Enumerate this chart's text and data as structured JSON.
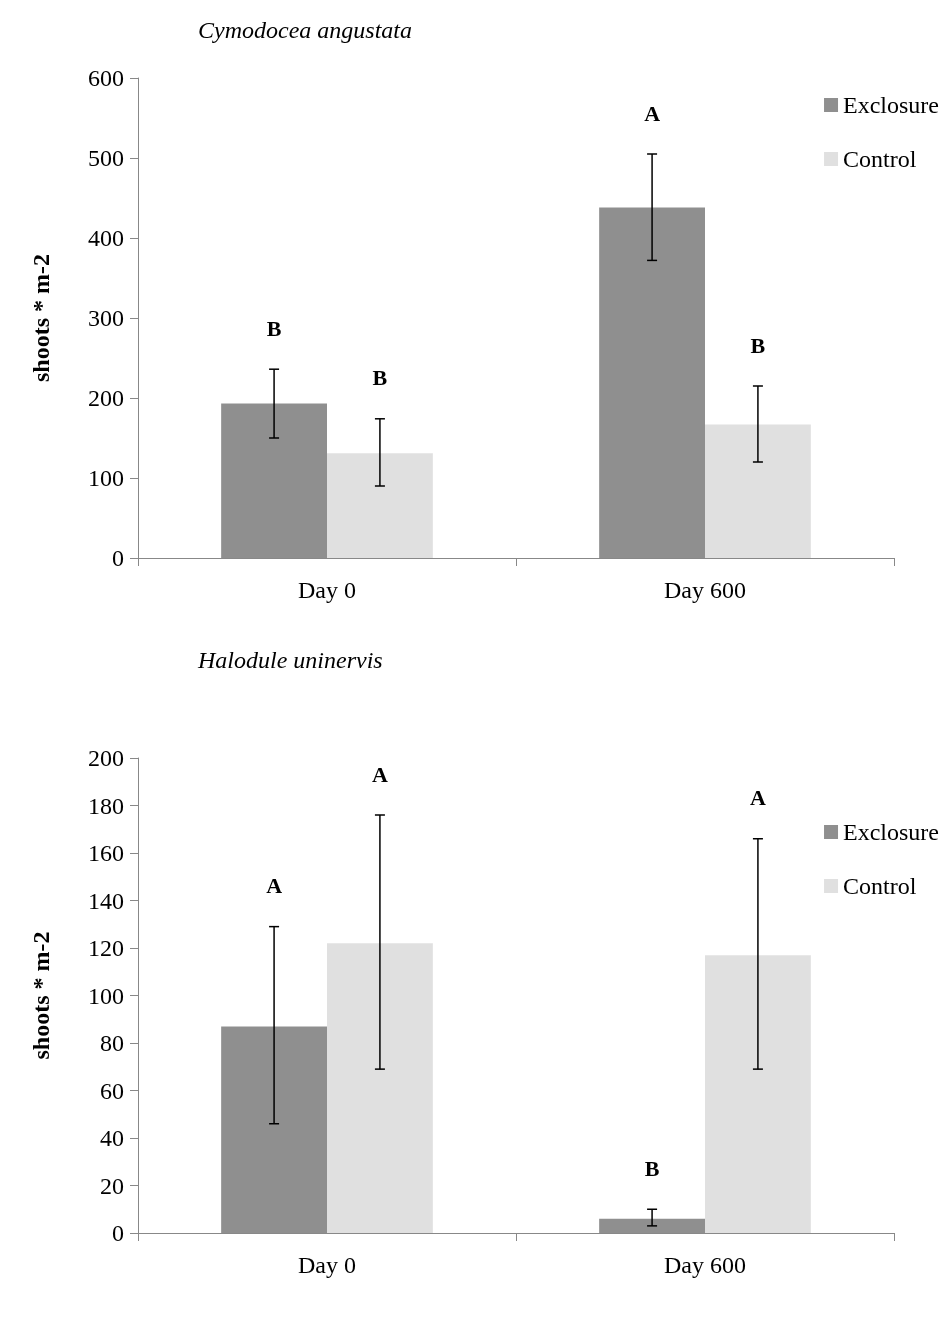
{
  "chart_data": [
    {
      "type": "bar",
      "title": "Cymodocea angustata",
      "ylabel": "shoots * m-2",
      "categories": [
        "Day 0",
        "Day 600"
      ],
      "ylim": [
        0,
        600
      ],
      "yticks": [
        0,
        100,
        200,
        300,
        400,
        500,
        600
      ],
      "grid": false,
      "legend": "top right",
      "annotations": [
        "B",
        "B",
        "A",
        "B"
      ],
      "series": [
        {
          "name": "Exclosure",
          "color": "#8f8f8f",
          "values": [
            193,
            438
          ],
          "errors": [
            [
              150,
              236
            ],
            [
              372,
              505
            ]
          ]
        },
        {
          "name": "Control",
          "color": "#e0e0e0",
          "values": [
            131,
            167
          ],
          "errors": [
            [
              90,
              174
            ],
            [
              120,
              215
            ]
          ]
        }
      ]
    },
    {
      "type": "bar",
      "title": "Halodule uninervis",
      "ylabel": "shoots * m-2",
      "categories": [
        "Day 0",
        "Day 600"
      ],
      "ylim": [
        0,
        200
      ],
      "yticks": [
        0,
        20,
        40,
        60,
        80,
        100,
        120,
        140,
        160,
        180,
        200
      ],
      "grid": false,
      "legend": "right",
      "annotations": [
        "A",
        "A",
        "B",
        "A"
      ],
      "series": [
        {
          "name": "Exclosure",
          "color": "#8f8f8f",
          "values": [
            87,
            6
          ],
          "errors": [
            [
              46,
              129
            ],
            [
              3,
              10
            ]
          ]
        },
        {
          "name": "Control",
          "color": "#e0e0e0",
          "values": [
            122,
            117
          ],
          "errors": [
            [
              69,
              176
            ],
            [
              69,
              166
            ]
          ]
        }
      ]
    }
  ]
}
